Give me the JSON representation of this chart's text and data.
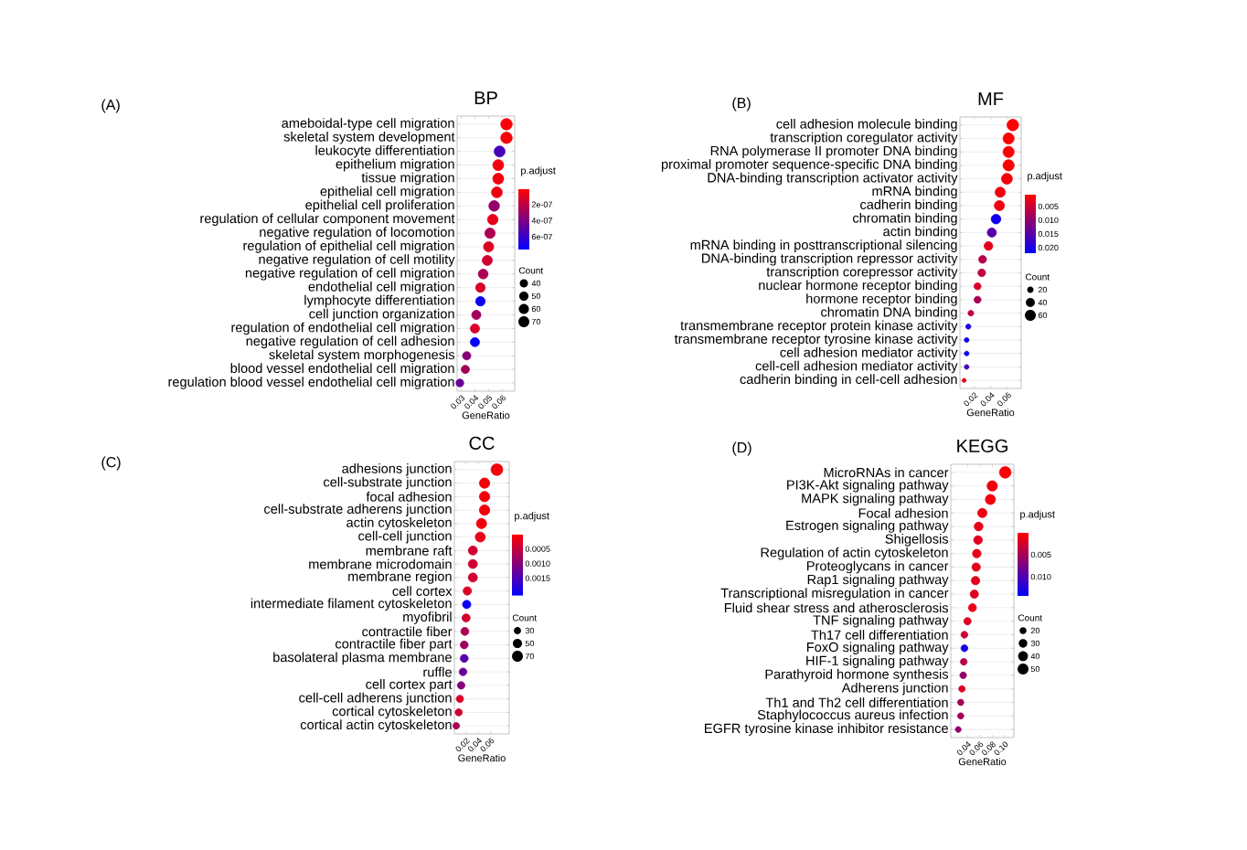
{
  "chart_data": [
    {
      "type": "bubble",
      "orientation": "horizontal",
      "title": "BP",
      "xlabel": "GeneRatio",
      "clabel": "p.adjust",
      "legend_title": "Count",
      "annotations": [
        "(A)"
      ],
      "grid": "y",
      "categories": [
        "ameboidal-type cell migration",
        "skeletal system development",
        "leukocyte differentiation",
        "epithelium migration",
        "tissue migration",
        "epithelial cell migration",
        "epithelial cell proliferation",
        "regulation of cellular component movement",
        "negative regulation of locomotion",
        "regulation of epithelial cell migration",
        "negative regulation of cell motility",
        "negative regulation of cell migration",
        "endothelial cell migration",
        "lymphocyte differentiation",
        "cell junction organization",
        "regulation of endothelial cell migration",
        "negative regulation of cell adhesion",
        "skeletal system morphogenesis",
        "blood vessel endothelial cell migration",
        "regulation blood vessel endothelial cell migration"
      ],
      "values": [
        0.063,
        0.063,
        0.058,
        0.057,
        0.057,
        0.056,
        0.054,
        0.053,
        0.051,
        0.05,
        0.049,
        0.046,
        0.044,
        0.044,
        0.041,
        0.04,
        0.04,
        0.034,
        0.033,
        0.029
      ],
      "sizes": [
        75,
        75,
        69,
        68,
        68,
        67,
        65,
        63,
        61,
        60,
        58,
        55,
        52,
        52,
        49,
        48,
        48,
        40,
        39,
        35
      ],
      "cvalues": [
        3e-08,
        3e-08,
        5.5e-07,
        5e-08,
        5e-08,
        6e-08,
        3.2e-07,
        8e-08,
        2.5e-07,
        1e-07,
        1.5e-07,
        2.6e-07,
        1.2e-07,
        7.2e-07,
        2.8e-07,
        1.3e-07,
        7.4e-07,
        3.6e-07,
        2.8e-07,
        4.5e-07
      ],
      "size_legend": [
        40,
        50,
        60,
        70
      ],
      "xlim": [
        0.027,
        0.069
      ],
      "xticks": [
        0.03,
        0.04,
        0.05,
        0.06
      ],
      "clim": [
        1e-08,
        7.6e-07
      ],
      "cticks": [
        {
          "value": 2e-07,
          "label": "2e-07"
        },
        {
          "value": 4e-07,
          "label": "4e-07"
        },
        {
          "value": 6e-07,
          "label": "6e-07"
        }
      ]
    },
    {
      "type": "bubble",
      "orientation": "horizontal",
      "title": "MF",
      "xlabel": "GeneRatio",
      "clabel": "p.adjust",
      "legend_title": "Count",
      "annotations": [
        "(B)"
      ],
      "grid": "y",
      "categories": [
        "cell adhesion molecule binding",
        "transcription coregulator activity",
        "RNA polymerase II promoter DNA binding",
        "proximal promoter sequence-specific DNA binding",
        "DNA-binding transcription activator activity",
        "mRNA binding",
        "cadherin binding",
        "chromatin binding",
        "actin binding",
        "mRNA binding in posttranscriptional silencing",
        "DNA-binding transcription repressor activity",
        "transcription corepressor activity",
        "nuclear hormone receptor binding",
        "hormone receptor binding",
        "chromatin DNA binding",
        "transmembrane receptor protein kinase activity",
        "transmembrane receptor tyrosine kinase activity",
        "cell adhesion mediator activity",
        "cell-cell adhesion mediator activity",
        "cadherin binding in cell-cell adhesion"
      ],
      "values": [
        0.066,
        0.061,
        0.061,
        0.061,
        0.059,
        0.051,
        0.05,
        0.046,
        0.041,
        0.037,
        0.03,
        0.029,
        0.024,
        0.024,
        0.016,
        0.013,
        0.011,
        0.011,
        0.011,
        0.008
      ],
      "sizes": [
        66,
        61,
        61,
        61,
        59,
        51,
        50,
        46,
        41,
        37,
        30,
        29,
        24,
        24,
        16,
        13,
        11,
        11,
        11,
        8
      ],
      "cvalues": [
        0.001,
        0.001,
        0.001,
        0.0012,
        0.0015,
        0.002,
        0.002,
        0.021,
        0.015,
        0.003,
        0.007,
        0.006,
        0.004,
        0.008,
        0.006,
        0.02,
        0.021,
        0.021,
        0.016,
        0.003
      ],
      "size_legend": [
        20,
        40,
        60
      ],
      "xlim": [
        0.003,
        0.076
      ],
      "xticks": [
        0.02,
        0.04,
        0.06
      ],
      "clim": [
        0.0007,
        0.0223
      ],
      "cticks": [
        0.005,
        {
          "value": 0.01,
          "label": "0.010"
        },
        0.015,
        {
          "value": 0.02,
          "label": "0.020"
        }
      ]
    },
    {
      "type": "bubble",
      "orientation": "horizontal",
      "title": "CC",
      "xlabel": "GeneRatio",
      "clabel": "p.adjust",
      "legend_title": "Count",
      "annotations": [
        "(C)"
      ],
      "grid": "y",
      "categories": [
        "adhesions junction",
        "cell-substrate junction",
        "focal adhesion",
        "cell-substrate adherens junction",
        "actin cytoskeleton",
        "cell-cell junction",
        "membrane raft",
        "membrane microdomain",
        "membrane region",
        "cell cortex",
        "intermediate filament cytoskeleton",
        "myofibril",
        "contractile fiber",
        "contractile fiber part",
        "basolateral plasma membrane",
        "ruffle",
        "cell cortex part",
        "cell-cell adherens junction",
        "cortical cytoskeleton",
        "cortical actin cytoskeleton"
      ],
      "values": [
        0.07,
        0.05,
        0.05,
        0.05,
        0.045,
        0.043,
        0.031,
        0.031,
        0.031,
        0.022,
        0.021,
        0.02,
        0.018,
        0.017,
        0.017,
        0.015,
        0.012,
        0.01,
        0.008,
        0.004
      ],
      "sizes": [
        80,
        62,
        62,
        62,
        60,
        58,
        48,
        48,
        48,
        40,
        40,
        38,
        37,
        36,
        36,
        34,
        32,
        30,
        29,
        25
      ],
      "cvalues": [
        0.0001,
        0.0001,
        0.0001,
        0.0001,
        0.0001,
        0.0002,
        0.0004,
        0.0004,
        0.0004,
        0.0003,
        0.002,
        0.0004,
        0.0007,
        0.0008,
        0.0014,
        0.0012,
        0.001,
        0.0003,
        0.0004,
        0.0007
      ],
      "size_legend": [
        30,
        50,
        70
      ],
      "xlim": [
        0.001,
        0.09
      ],
      "xticks": [
        0.02,
        0.04,
        0.06
      ],
      "clim": [
        1e-05,
        0.0021
      ],
      "cticks": [
        0.0005,
        {
          "value": 0.001,
          "label": "0.0010"
        },
        0.0015
      ]
    },
    {
      "type": "bubble",
      "orientation": "horizontal",
      "title": "KEGG",
      "xlabel": "GeneRatio",
      "clabel": "p.adjust",
      "legend_title": "Count",
      "annotations": [
        "(D)"
      ],
      "grid": "y",
      "categories": [
        "MicroRNAs in cancer",
        "PI3K-Akt signaling pathway",
        "MAPK signaling pathway",
        "Focal adhesion",
        "Estrogen signaling pathway",
        "Shigellosis",
        "Regulation of actin cytoskeleton",
        "Proteoglycans in cancer",
        "Rap1 signaling pathway",
        "Transcriptional misregulation in cancer",
        "Fluid shear stress and atherosclerosis",
        "TNF signaling pathway",
        "Th17 cell differentiation",
        "FoxO signaling pathway",
        "HIF-1 signaling pathway",
        "Parathyroid hormone synthesis",
        "Adherens junction",
        "Th1 and Th2 cell differentiation",
        "Staphylococcus aureus infection",
        "EGFR tyrosine kinase inhibitor resistance"
      ],
      "values": [
        0.101,
        0.08,
        0.077,
        0.064,
        0.058,
        0.057,
        0.055,
        0.054,
        0.053,
        0.051,
        0.048,
        0.04,
        0.035,
        0.035,
        0.034,
        0.033,
        0.031,
        0.029,
        0.029,
        0.025
      ],
      "sizes": [
        55,
        44,
        42,
        35,
        32,
        31,
        30,
        29,
        29,
        28,
        26,
        22,
        19,
        19,
        19,
        18,
        17,
        16,
        16,
        14
      ],
      "cvalues": [
        0.0005,
        0.0008,
        0.0008,
        0.001,
        0.0015,
        0.0018,
        0.0015,
        0.0015,
        0.0018,
        0.002,
        0.0012,
        0.002,
        0.003,
        0.013,
        0.004,
        0.006,
        0.002,
        0.005,
        0.005,
        0.006
      ],
      "size_legend": [
        20,
        30,
        40,
        50
      ],
      "xlim": [
        0.013,
        0.115
      ],
      "xticks": [
        0.04,
        0.06,
        0.08,
        {
          "value": 0.1,
          "label": "0.10"
        }
      ],
      "clim": [
        0.0001,
        0.0143
      ],
      "cticks": [
        0.005,
        {
          "value": 0.01,
          "label": "0.010"
        }
      ]
    }
  ]
}
